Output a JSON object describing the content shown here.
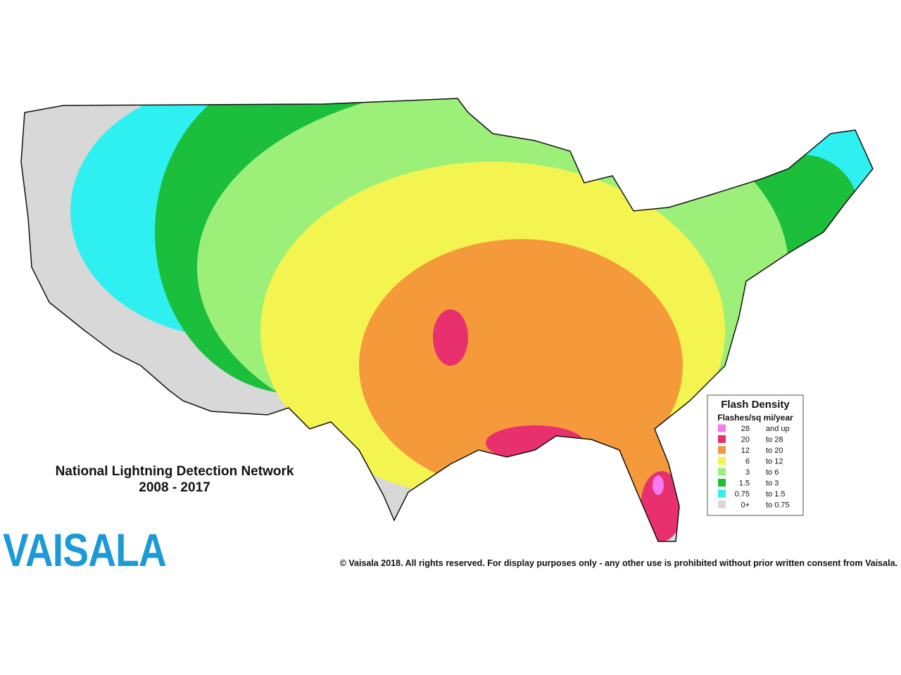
{
  "map": {
    "title": "National Lightning Detection Network",
    "period": "2008 - 2017"
  },
  "legend": {
    "title": "Flash Density",
    "subtitle": "Flashes/sq mi/year",
    "entries": [
      {
        "from": "28",
        "to": "and up",
        "color": "#f57cf0"
      },
      {
        "from": "20",
        "to": "to 28",
        "color": "#e8306f"
      },
      {
        "from": "12",
        "to": "to 20",
        "color": "#f59a3a"
      },
      {
        "from": "6",
        "to": "to 12",
        "color": "#f4f450"
      },
      {
        "from": "3",
        "to": "to  6",
        "color": "#9cf07a"
      },
      {
        "from": "1.5",
        "to": "to  3",
        "color": "#1cbf3c"
      },
      {
        "from": "0.75",
        "to": "to  1.5",
        "color": "#2ff0f0"
      },
      {
        "from": "0+",
        "to": "to  0.75",
        "color": "#d8d8d8"
      }
    ]
  },
  "logo": "VAISALA",
  "copyright": "© Vaisala 2018. All rights reserved. For display purposes only - any other use is prohibited without prior written consent from Vaisala."
}
